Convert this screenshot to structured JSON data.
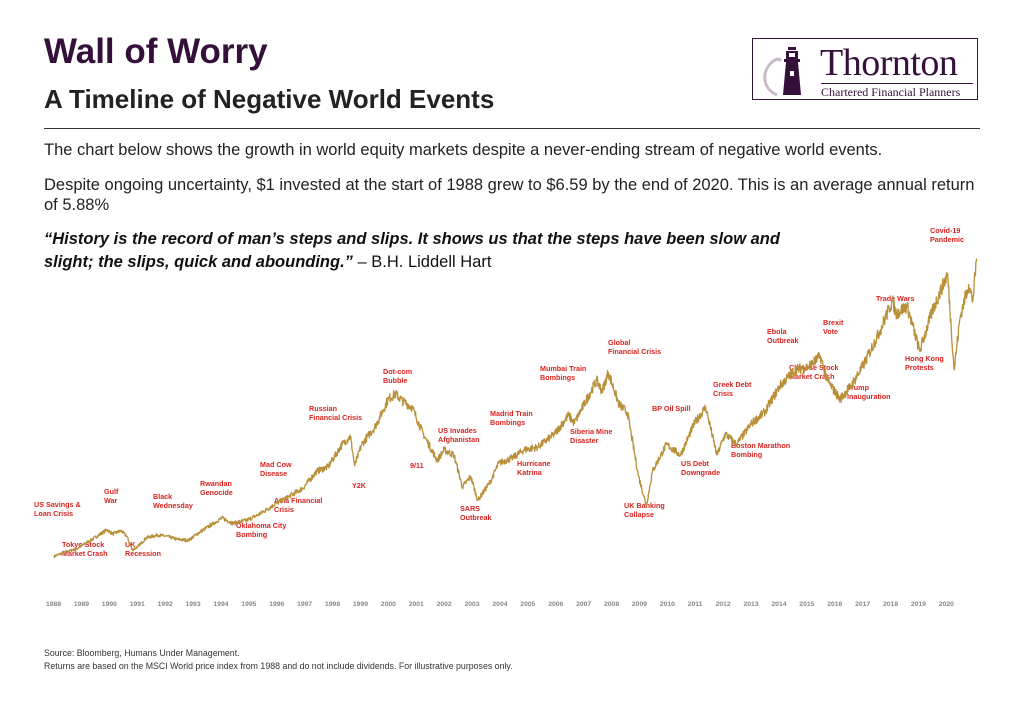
{
  "header": {
    "title": "Wall of Worry",
    "subtitle": "A Timeline of Negative World Events"
  },
  "logo": {
    "name": "Thornton",
    "tagline": "Chartered Financial Planners"
  },
  "intro": {
    "line1": "The chart below shows the growth in world equity markets despite a never-ending stream of negative world events.",
    "line2": "Despite ongoing uncertainty, $1 invested at the start of 1988 grew to $6.59 by the end of 2020. This is an average annual return of 5.88%"
  },
  "quote": {
    "text": "“History is the record of man’s steps and slips. It shows us that the steps have been slow and slight; the slips, quick and abounding.”",
    "author": " – B.H. Liddell Hart"
  },
  "footer": {
    "source": "Source: Bloomberg, Humans Under Management.",
    "note": "Returns are based on the MSCI World price index from 1988 and do not include dividends. For illustrative purposes only."
  },
  "colors": {
    "line": "#b8903a",
    "events": "#d9231f",
    "brand": "#35103a",
    "axis_text": "#888888"
  },
  "chart_data": {
    "type": "line",
    "title": "",
    "xlabel": "",
    "ylabel": "",
    "x_ticks": [
      "1988",
      "1989",
      "1990",
      "1991",
      "1992",
      "1993",
      "1994",
      "1995",
      "1996",
      "1997",
      "1998",
      "1999",
      "2000",
      "2001",
      "2002",
      "2003",
      "2004",
      "2005",
      "2006",
      "2007",
      "2008",
      "2009",
      "2010",
      "2011",
      "2012",
      "2013",
      "2014",
      "2015",
      "2016",
      "2017",
      "2018",
      "2019",
      "2020"
    ],
    "xlim": [
      1988,
      2021
    ],
    "ylim": [
      0.5,
      7.2
    ],
    "grid": false,
    "series": [
      {
        "values": [
          [
            1988.0,
            1.0
          ],
          [
            1988.4,
            1.08
          ],
          [
            1988.8,
            1.14
          ],
          [
            1989.3,
            1.3
          ],
          [
            1989.9,
            1.5
          ],
          [
            1990.1,
            1.42
          ],
          [
            1990.4,
            1.48
          ],
          [
            1990.6,
            1.38
          ],
          [
            1990.8,
            1.12
          ],
          [
            1991.0,
            1.18
          ],
          [
            1991.3,
            1.35
          ],
          [
            1991.7,
            1.4
          ],
          [
            1992.0,
            1.38
          ],
          [
            1992.4,
            1.32
          ],
          [
            1992.8,
            1.3
          ],
          [
            1993.2,
            1.45
          ],
          [
            1993.8,
            1.65
          ],
          [
            1994.0,
            1.72
          ],
          [
            1994.4,
            1.62
          ],
          [
            1994.9,
            1.68
          ],
          [
            1995.3,
            1.78
          ],
          [
            1995.9,
            1.98
          ],
          [
            1996.4,
            2.12
          ],
          [
            1996.9,
            2.28
          ],
          [
            1997.4,
            2.6
          ],
          [
            1997.8,
            2.68
          ],
          [
            1998.3,
            3.1
          ],
          [
            1998.6,
            3.25
          ],
          [
            1998.75,
            2.7
          ],
          [
            1999.0,
            3.1
          ],
          [
            1999.5,
            3.45
          ],
          [
            1999.95,
            3.95
          ],
          [
            2000.2,
            4.05
          ],
          [
            2000.5,
            3.9
          ],
          [
            2000.8,
            3.8
          ],
          [
            2001.2,
            3.3
          ],
          [
            2001.7,
            2.8
          ],
          [
            2001.95,
            3.0
          ],
          [
            2002.3,
            2.9
          ],
          [
            2002.6,
            2.3
          ],
          [
            2002.9,
            2.5
          ],
          [
            2003.15,
            2.05
          ],
          [
            2003.6,
            2.4
          ],
          [
            2003.9,
            2.75
          ],
          [
            2004.4,
            2.85
          ],
          [
            2004.8,
            3.0
          ],
          [
            2005.3,
            3.05
          ],
          [
            2005.9,
            3.3
          ],
          [
            2006.4,
            3.65
          ],
          [
            2006.6,
            3.5
          ],
          [
            2006.95,
            3.85
          ],
          [
            2007.4,
            4.3
          ],
          [
            2007.6,
            4.1
          ],
          [
            2007.82,
            4.45
          ],
          [
            2008.2,
            3.85
          ],
          [
            2008.5,
            3.7
          ],
          [
            2008.9,
            2.5
          ],
          [
            2009.18,
            1.95
          ],
          [
            2009.4,
            2.6
          ],
          [
            2009.9,
            3.1
          ],
          [
            2010.4,
            2.9
          ],
          [
            2010.9,
            3.5
          ],
          [
            2011.3,
            3.8
          ],
          [
            2011.7,
            2.9
          ],
          [
            2012.0,
            3.3
          ],
          [
            2012.4,
            3.1
          ],
          [
            2012.95,
            3.5
          ],
          [
            2013.4,
            3.7
          ],
          [
            2013.95,
            4.2
          ],
          [
            2014.5,
            4.5
          ],
          [
            2014.95,
            4.55
          ],
          [
            2015.4,
            4.75
          ],
          [
            2015.65,
            4.3
          ],
          [
            2016.1,
            3.95
          ],
          [
            2016.5,
            4.2
          ],
          [
            2016.95,
            4.6
          ],
          [
            2017.5,
            5.2
          ],
          [
            2017.98,
            5.8
          ],
          [
            2018.1,
            5.55
          ],
          [
            2018.5,
            5.7
          ],
          [
            2018.95,
            4.85
          ],
          [
            2019.4,
            5.6
          ],
          [
            2019.95,
            6.3
          ],
          [
            2020.18,
            4.5
          ],
          [
            2020.4,
            5.5
          ],
          [
            2020.7,
            6.1
          ],
          [
            2020.85,
            5.8
          ],
          [
            2020.99,
            6.59
          ]
        ]
      }
    ],
    "annotations": [
      "US Savings &|Loan Crisis",
      "Tokyo Stock|Market Crash",
      "Gulf|War",
      "UK|Recession",
      "Black|Wednesday",
      "Rwandan|Genocide",
      "Oklahoma City|Bombing",
      "Mad Cow|Disease",
      "Asia Financial|Crisis",
      "Russian|Financial Crisis",
      "Y2K",
      "Dot-com|Bubble",
      "9/11",
      "US Invades|Afghanistan",
      "SARS|Outbreak",
      "Madrid Train|Bombings",
      "Hurricane|Katrina",
      "Mumbai Train|Bombings",
      "Siberia Mine|Disaster",
      "Global|Financial Crisis",
      "UK Banking|Collapse",
      "BP Oil Spill",
      "US Debt|Downgrade",
      "Greek Debt|Crisis",
      "Boston Marathon|Bombing",
      "Ebola|Outbreak",
      "Chinese Stock|Market Crash",
      "Brexit|Vote",
      "Trump|Inauguration",
      "Trade Wars",
      "Hong Kong|Protests",
      "Covid-19|Pandemic"
    ]
  }
}
